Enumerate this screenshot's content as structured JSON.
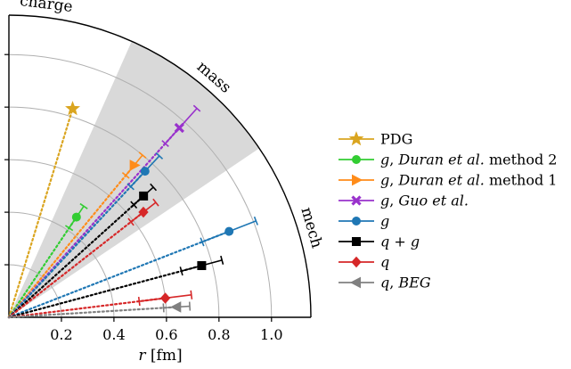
{
  "chart_data": {
    "type": "scatter",
    "coordinate_system": "polar-quadrant",
    "xlabel": "r [fm]",
    "r_ticks": [
      "0.2",
      "0.4",
      "0.6",
      "0.8",
      "1.0"
    ],
    "r_tick_values": [
      0.2,
      0.4,
      0.6,
      0.8,
      1.0
    ],
    "r_max": 1.15,
    "grid": true,
    "sector_labels": {
      "charge": "charge",
      "mass": "mass",
      "mech": "mech"
    },
    "shaded_band_deg": [
      34,
      66
    ],
    "legend_position": "right",
    "series": [
      {
        "name": "PDG",
        "color": "#DAA520",
        "marker": "star",
        "r": 0.83,
        "angle_deg": 73,
        "err_low": 0,
        "err_high": 0,
        "text_parts": [
          {
            "t": "PDG",
            "style": "normal"
          }
        ]
      },
      {
        "name": "g, Duran et al. method 2",
        "color": "#32CD32",
        "marker": "circle",
        "r": 0.46,
        "angle_deg": 56,
        "err_low": 0.05,
        "err_high": 0.05,
        "text_parts": [
          {
            "t": "g",
            "style": "italic"
          },
          {
            "t": ", ",
            "style": "normal"
          },
          {
            "t": "Duran et al.",
            "style": "italic"
          },
          {
            "t": " method 2",
            "style": "normal"
          }
        ]
      },
      {
        "name": "g, Duran et al. method 1",
        "color": "#FF8C1A",
        "marker": "triangle-right",
        "r": 0.75,
        "angle_deg": 50.5,
        "err_low": 0.05,
        "err_high": 0.05,
        "text_parts": [
          {
            "t": "g",
            "style": "italic"
          },
          {
            "t": ", ",
            "style": "normal"
          },
          {
            "t": "Duran et al.",
            "style": "italic"
          },
          {
            "t": " method 1",
            "style": "normal"
          }
        ]
      },
      {
        "name": "g, Guo et al.",
        "color": "#9932CC",
        "marker": "cross",
        "r": 0.97,
        "angle_deg": 48,
        "err_low": 0.08,
        "err_high": 0.1,
        "text_parts": [
          {
            "t": "g",
            "style": "italic"
          },
          {
            "t": ", ",
            "style": "normal"
          },
          {
            "t": "Guo et al.",
            "style": "italic"
          }
        ]
      },
      {
        "name": "g",
        "color": "#1F77B4",
        "marker": "circle",
        "r": 0.76,
        "angle_deg": 47,
        "err_low": 0.08,
        "err_high": 0.08,
        "text_parts": [
          {
            "t": "g",
            "style": "italic"
          }
        ]
      },
      {
        "name": "q+g",
        "color": "#000000",
        "marker": "square",
        "r": 0.69,
        "angle_deg": 42,
        "err_low": 0.05,
        "err_high": 0.05,
        "text_parts": [
          {
            "t": "q",
            "style": "italic"
          },
          {
            "t": " + ",
            "style": "normal"
          },
          {
            "t": "g",
            "style": "italic"
          }
        ]
      },
      {
        "name": "q",
        "color": "#D62728",
        "marker": "diamond",
        "r": 0.65,
        "angle_deg": 38,
        "err_low": 0.06,
        "err_high": 0.06,
        "text_parts": [
          {
            "t": "q",
            "style": "italic"
          }
        ]
      },
      {
        "name": "g",
        "color": "#1F77B4",
        "marker": "circle",
        "r": 0.9,
        "angle_deg": 21.3,
        "err_low": 0.11,
        "err_high": 0.11,
        "text_parts": []
      },
      {
        "name": "q+g",
        "color": "#000000",
        "marker": "square",
        "r": 0.76,
        "angle_deg": 15,
        "err_low": 0.08,
        "err_high": 0.08,
        "text_parts": []
      },
      {
        "name": "q",
        "color": "#D62728",
        "marker": "diamond",
        "r": 0.6,
        "angle_deg": 7,
        "err_low": 0.1,
        "err_high": 0.1,
        "text_parts": []
      },
      {
        "name": "q, BEG",
        "color": "#808080",
        "marker": "triangle-left",
        "r": 0.64,
        "angle_deg": 3.5,
        "err_low": 0.05,
        "err_high": 0.05,
        "text_parts": [
          {
            "t": "q",
            "style": "italic"
          },
          {
            "t": ", ",
            "style": "normal"
          },
          {
            "t": "BEG",
            "style": "italic"
          }
        ]
      }
    ]
  }
}
